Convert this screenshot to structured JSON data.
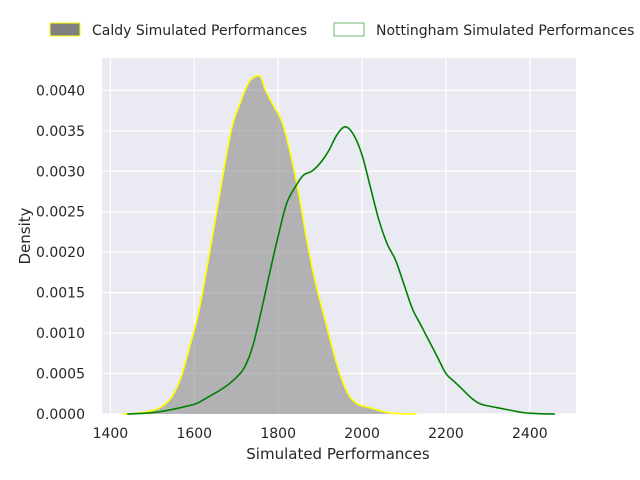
{
  "chart_data": {
    "type": "area",
    "title": "",
    "xlabel": "Simulated Performances",
    "ylabel": "Density",
    "xlim": [
      1380,
      2510
    ],
    "ylim": [
      0,
      0.0044
    ],
    "x_ticks": [
      1400,
      1600,
      1800,
      2000,
      2200,
      2400
    ],
    "x_tick_labels": [
      "1400",
      "1600",
      "1800",
      "2000",
      "2200",
      "2400"
    ],
    "y_ticks": [
      0,
      0.0005,
      0.001,
      0.0015,
      0.002,
      0.0025,
      0.003,
      0.0035,
      0.004
    ],
    "y_tick_labels": [
      "0.0000",
      "0.0005",
      "0.0010",
      "0.0015",
      "0.0020",
      "0.0025",
      "0.0030",
      "0.0035",
      "0.0040"
    ],
    "grid": true,
    "legend_position": "top",
    "series": [
      {
        "name": "Caldy Simulated Performances",
        "style": "filled",
        "fill_color": "#8c8c8c",
        "line_color": "#ffff00",
        "x": [
          1430,
          1460,
          1490,
          1510,
          1530,
          1550,
          1570,
          1590,
          1610,
          1630,
          1650,
          1670,
          1690,
          1710,
          1730,
          1750,
          1760,
          1770,
          1790,
          1810,
          1830,
          1850,
          1870,
          1890,
          1910,
          1930,
          1950,
          1970,
          1990,
          2010,
          2030,
          2050,
          2070,
          2090,
          2110,
          2130
        ],
        "y": [
          0,
          7e-06,
          3e-05,
          6e-05,
          0.00012,
          0.00024,
          0.00048,
          0.00085,
          0.00125,
          0.0018,
          0.0024,
          0.003,
          0.00355,
          0.00385,
          0.0041,
          0.00418,
          0.00415,
          0.004,
          0.0038,
          0.0036,
          0.0032,
          0.0027,
          0.0021,
          0.0016,
          0.0012,
          0.0008,
          0.00045,
          0.00022,
          0.00012,
          9e-05,
          6e-05,
          3e-05,
          1e-05,
          3e-06,
          1e-06,
          0
        ]
      },
      {
        "name": "Nottingham Simulated Performances",
        "style": "line",
        "line_color": "#008000",
        "x": [
          1440,
          1480,
          1520,
          1560,
          1600,
          1620,
          1640,
          1660,
          1680,
          1700,
          1720,
          1740,
          1760,
          1780,
          1800,
          1820,
          1840,
          1860,
          1880,
          1900,
          1920,
          1940,
          1960,
          1980,
          2000,
          2020,
          2040,
          2060,
          2080,
          2100,
          2120,
          2140,
          2160,
          2180,
          2200,
          2220,
          2240,
          2260,
          2280,
          2300,
          2320,
          2340,
          2360,
          2380,
          2400,
          2420,
          2440,
          2460
        ],
        "y": [
          0,
          8e-06,
          3e-05,
          7e-05,
          0.00012,
          0.00017,
          0.00023,
          0.00029,
          0.00036,
          0.00045,
          0.00058,
          0.00085,
          0.00128,
          0.00175,
          0.0022,
          0.0026,
          0.0028,
          0.00295,
          0.003,
          0.0031,
          0.00325,
          0.00345,
          0.00355,
          0.00345,
          0.0032,
          0.0028,
          0.0024,
          0.0021,
          0.0019,
          0.0016,
          0.0013,
          0.0011,
          0.0009,
          0.0007,
          0.0005,
          0.0004,
          0.0003,
          0.0002,
          0.00013,
          0.0001,
          8e-05,
          6e-05,
          4e-05,
          2e-05,
          1e-05,
          4e-06,
          1e-06,
          0
        ]
      }
    ]
  }
}
